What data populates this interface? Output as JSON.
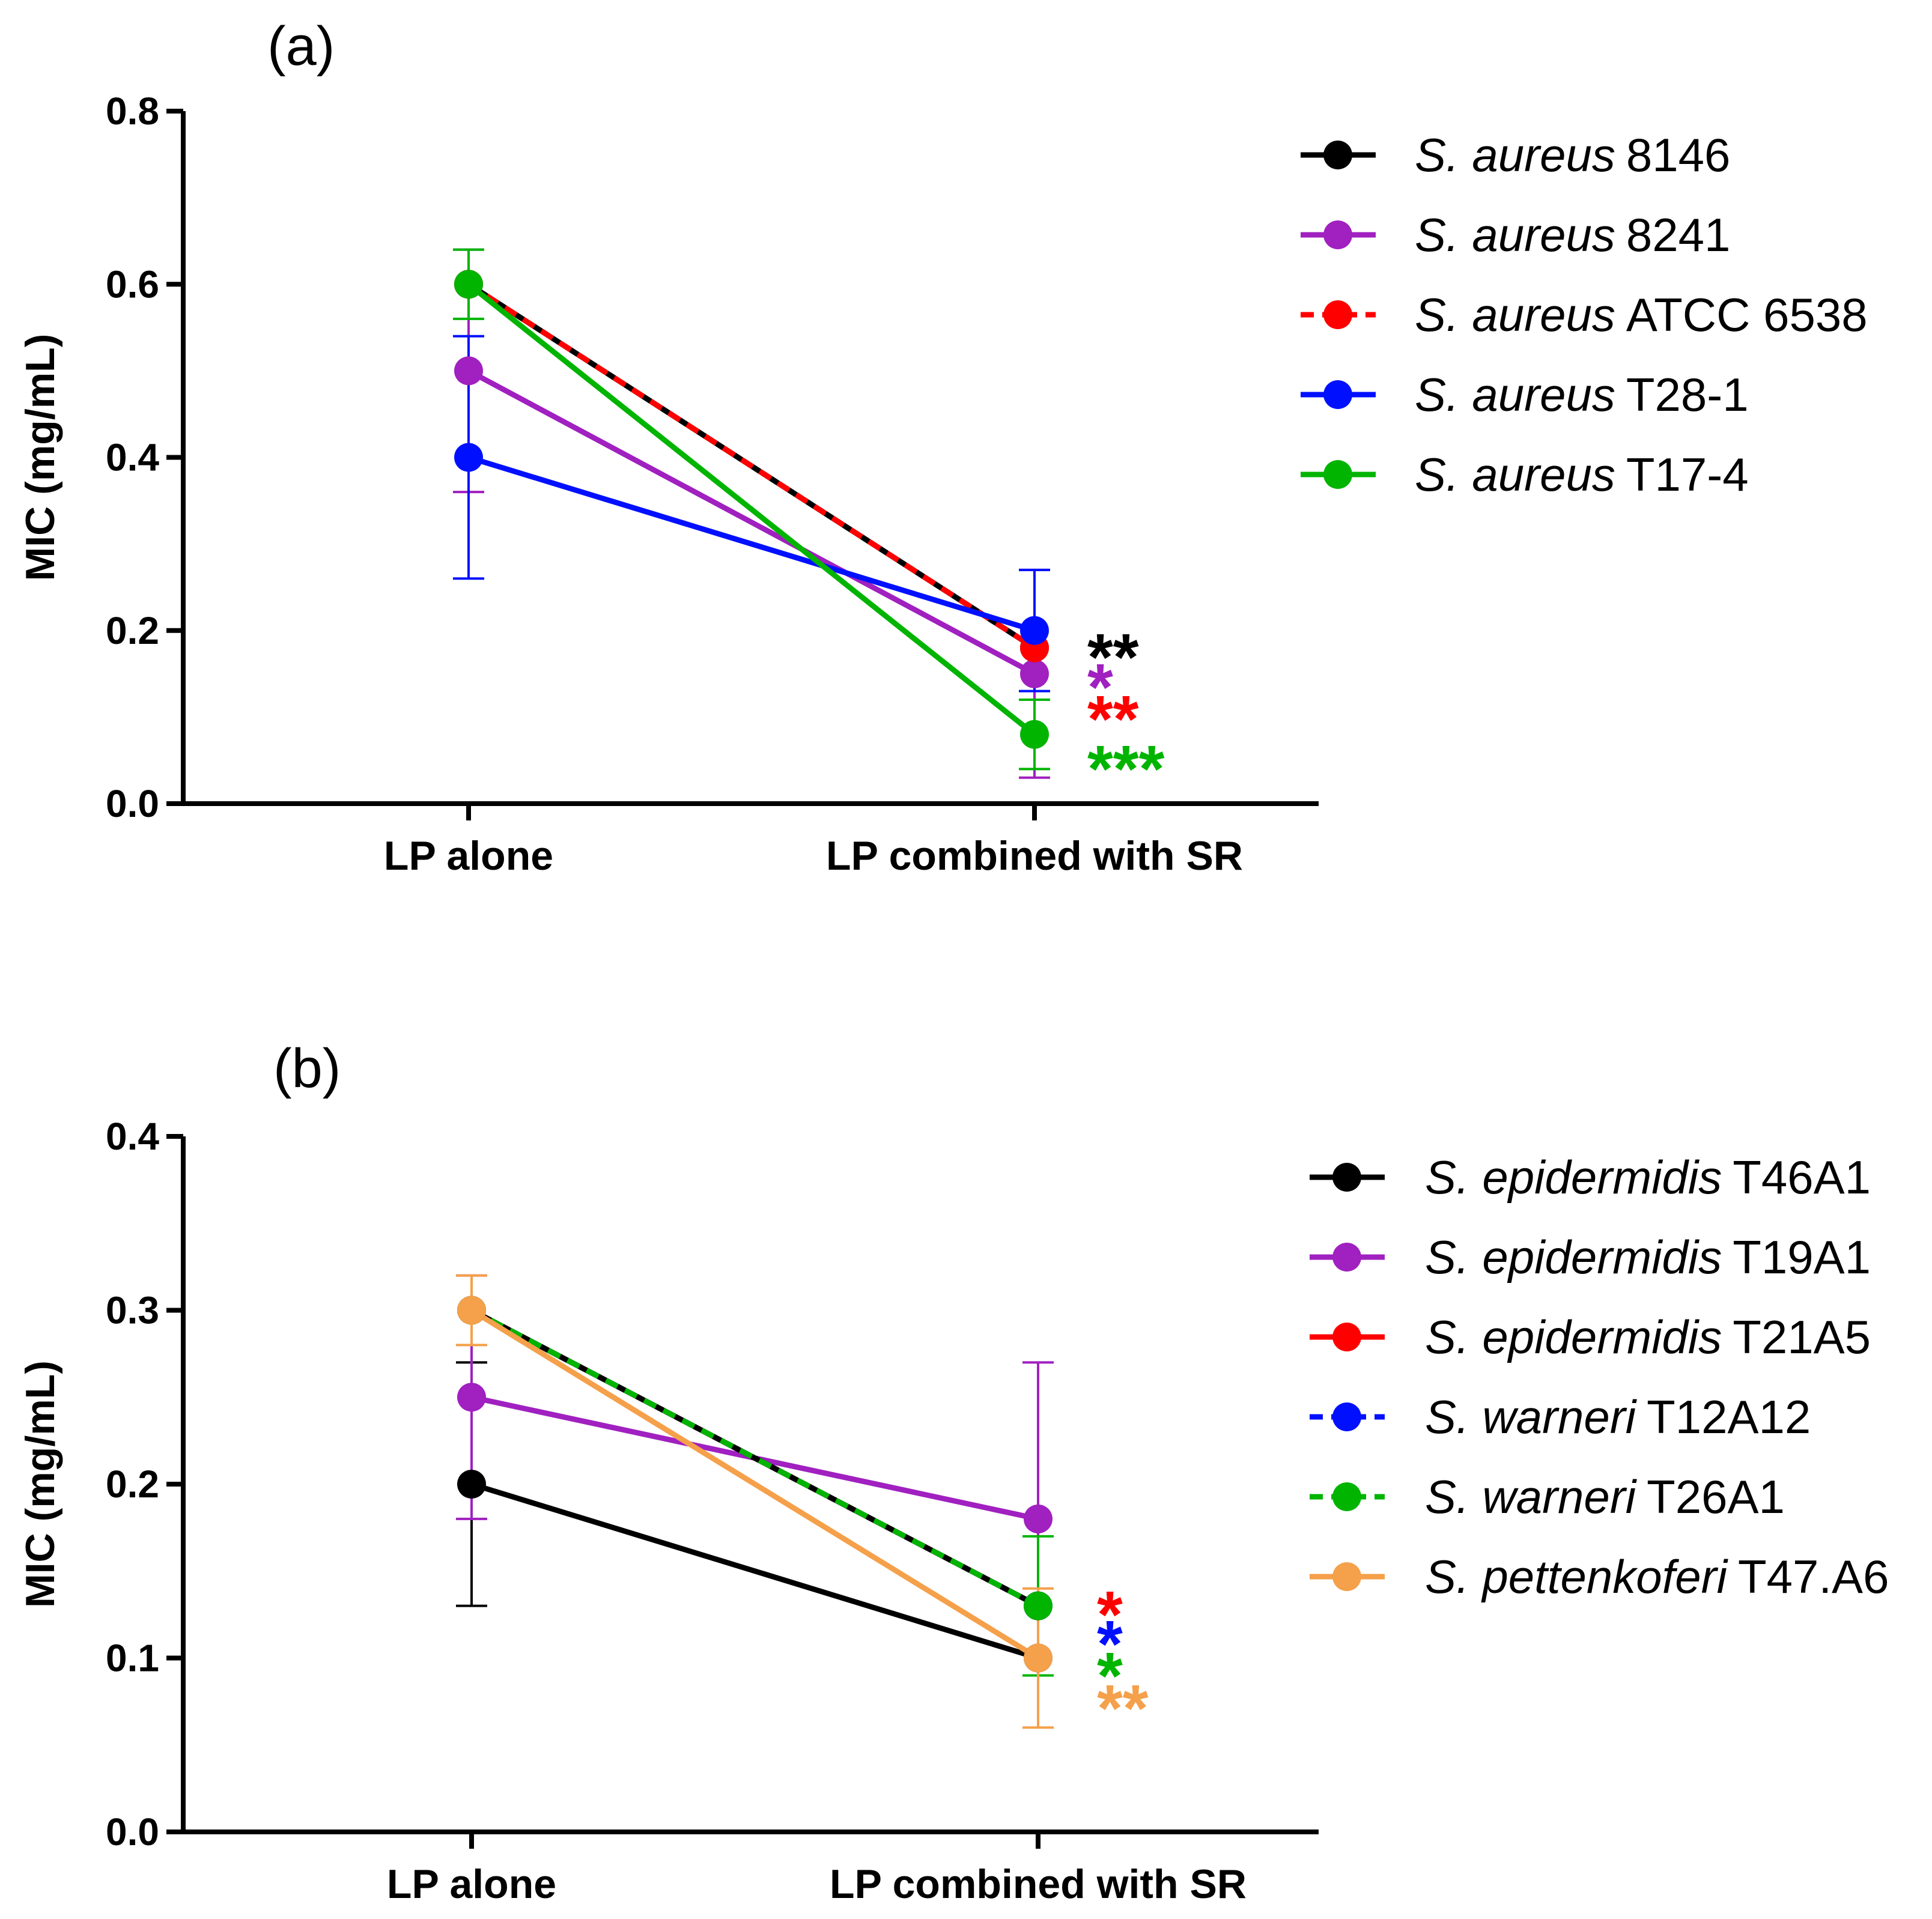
{
  "chart_data": [
    {
      "type": "line",
      "panel_label": "(a)",
      "categories": [
        "LP alone",
        "LP combined with SR"
      ],
      "ylabel": "MIC (mg/mL)",
      "xlabel": "",
      "ylim": [
        0,
        0.8
      ],
      "yticks": [
        "0.0",
        "0.2",
        "0.4",
        "0.6",
        "0.8"
      ],
      "grid": false,
      "legend_position": "top-right",
      "series": [
        {
          "name": "S. aureus 8146",
          "species": "S. aureus",
          "strain": "8146",
          "color": "#000000",
          "dashed": false,
          "values": [
            0.6,
            0.18
          ],
          "error": [
            0,
            0
          ],
          "significance": "**"
        },
        {
          "name": "S. aureus 8241",
          "species": "S. aureus",
          "strain": "8241",
          "color": "#a020c0",
          "dashed": false,
          "values": [
            0.5,
            0.15
          ],
          "error": [
            0.14,
            0.12
          ],
          "significance": "*"
        },
        {
          "name": "S. aureus ATCC 6538",
          "species": "S. aureus",
          "strain": "ATCC 6538",
          "color": "#ff0000",
          "dashed": true,
          "values": [
            0.6,
            0.18
          ],
          "error": [
            0,
            0
          ],
          "significance": "**"
        },
        {
          "name": "S. aureus T28-1",
          "species": "S. aureus",
          "strain": "T28-1",
          "color": "#0010ff",
          "dashed": false,
          "values": [
            0.4,
            0.2
          ],
          "error": [
            0.14,
            0.07
          ],
          "significance": ""
        },
        {
          "name": "S. aureus T17-4",
          "species": "S. aureus",
          "strain": "T17-4",
          "color": "#00b400",
          "dashed": false,
          "values": [
            0.6,
            0.08
          ],
          "error": [
            0.04,
            0.04
          ],
          "significance": "***"
        }
      ]
    },
    {
      "type": "line",
      "panel_label": "(b)",
      "categories": [
        "LP alone",
        "LP combined with SR"
      ],
      "ylabel": "MIC (mg/mL)",
      "xlabel": "",
      "ylim": [
        0,
        0.4
      ],
      "yticks": [
        "0.0",
        "0.1",
        "0.2",
        "0.3",
        "0.4"
      ],
      "grid": false,
      "legend_position": "top-right",
      "series": [
        {
          "name": "S. epidermidis T46A1",
          "species": "S. epidermidis",
          "strain": "T46A1",
          "color": "#000000",
          "dashed": false,
          "values": [
            0.2,
            0.1
          ],
          "error": [
            0.07,
            0
          ],
          "significance": ""
        },
        {
          "name": "S. epidermidis T19A1",
          "species": "S. epidermidis",
          "strain": "T19A1",
          "color": "#a020c0",
          "dashed": false,
          "values": [
            0.25,
            0.18
          ],
          "error": [
            0.07,
            0.09
          ],
          "significance": ""
        },
        {
          "name": "S. epidermidis T21A5",
          "species": "S. epidermidis",
          "strain": "T21A5",
          "color": "#ff0000",
          "dashed": false,
          "values": [
            0.3,
            0.13
          ],
          "error": [
            0,
            0
          ],
          "significance": "*"
        },
        {
          "name": "S. warneri T12A12",
          "species": "S. warneri",
          "strain": "T12A12",
          "color": "#0010ff",
          "dashed": true,
          "values": [
            0.3,
            0.13
          ],
          "error": [
            0,
            0
          ],
          "significance": "*"
        },
        {
          "name": "S. warneri T26A1",
          "species": "S. warneri",
          "strain": "T26A1",
          "color": "#00b400",
          "dashed": true,
          "values": [
            0.3,
            0.13
          ],
          "error": [
            0,
            0.04
          ],
          "significance": "*"
        },
        {
          "name": "S. pettenkoferi T47.A6",
          "species": "S. pettenkoferi",
          "strain": "T47.A6",
          "color": "#f5a04a",
          "dashed": false,
          "values": [
            0.3,
            0.1
          ],
          "error": [
            0.02,
            0.04
          ],
          "significance": "**"
        }
      ]
    }
  ]
}
